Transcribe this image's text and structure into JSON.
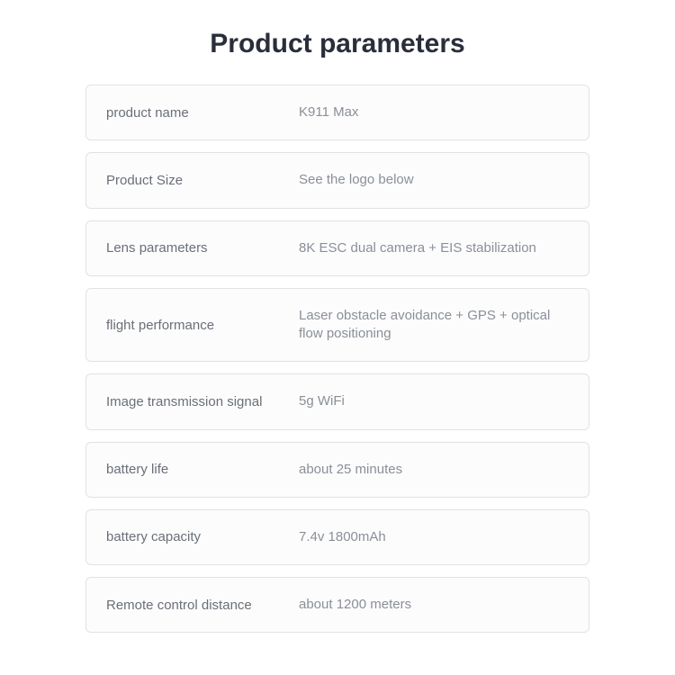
{
  "title": "Product parameters",
  "rows": [
    {
      "label": "product name",
      "value": "K911 Max"
    },
    {
      "label": "Product Size",
      "value": "See the logo below"
    },
    {
      "label": "Lens parameters",
      "value": "8K ESC dual camera + EIS stabilization"
    },
    {
      "label": "flight performance",
      "value": "Laser obstacle avoidance + GPS + optical flow positioning"
    },
    {
      "label": "Image transmission signal",
      "value": "5g WiFi"
    },
    {
      "label": "battery life",
      "value": "about 25 minutes"
    },
    {
      "label": "battery capacity",
      "value": "7.4v 1800mAh"
    },
    {
      "label": "Remote control distance",
      "value": "about 1200 meters"
    }
  ],
  "styling": {
    "type": "table",
    "title_color": "#2a2e3a",
    "title_fontsize": 30,
    "title_fontweight": "bold",
    "row_background": "#fcfcfc",
    "row_border_color": "#e2e2e2",
    "row_border_radius": 6,
    "row_gap": 13,
    "row_padding_vertical": 20,
    "row_padding_horizontal": 22,
    "label_color": "#6a6f78",
    "value_color": "#8a8f98",
    "text_fontsize": 15,
    "label_column_width": 214,
    "container_width": 560,
    "page_background": "#ffffff"
  }
}
